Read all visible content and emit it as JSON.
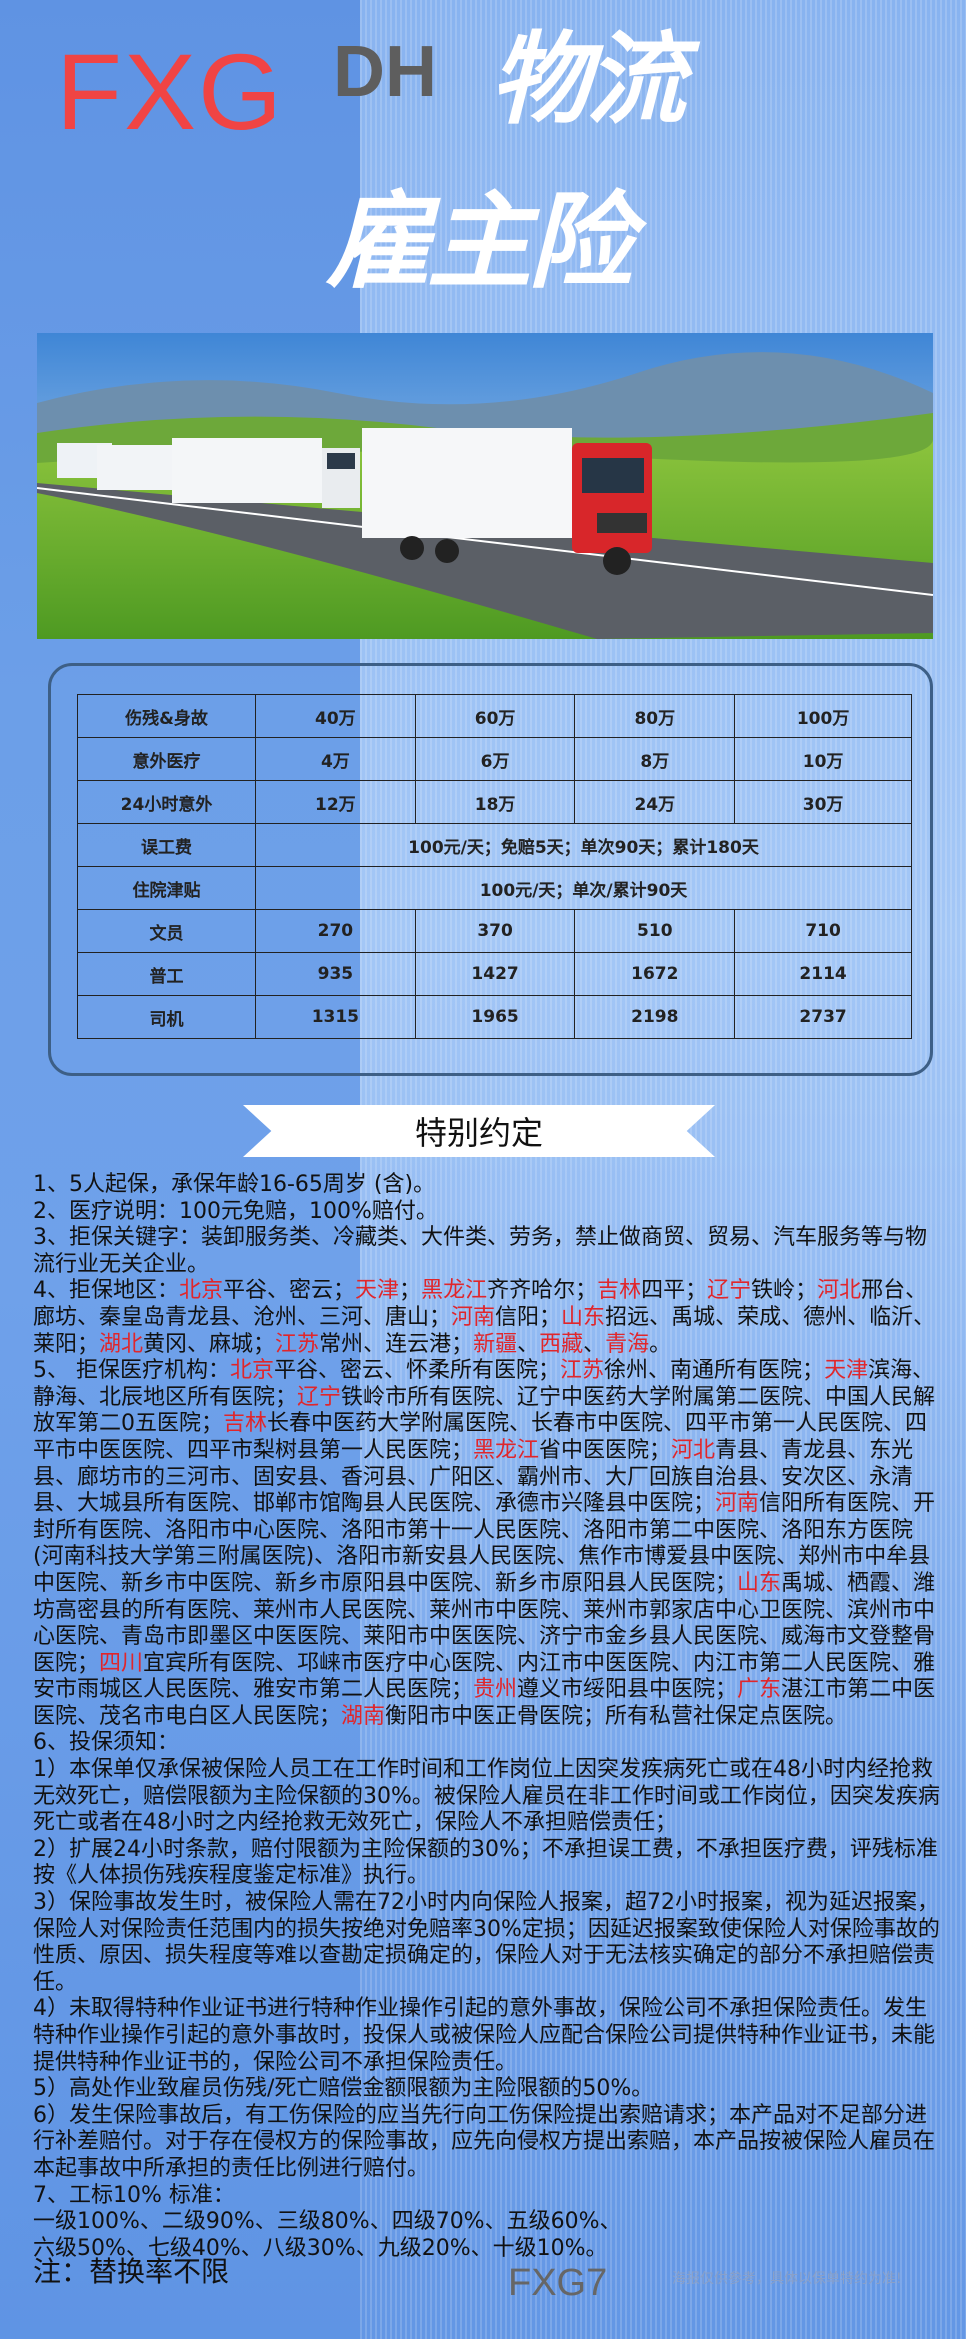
{
  "header": {
    "brand": "FXG",
    "brand_color": "#f04444",
    "sub_brand": "DH",
    "title_line1": "物流",
    "title_line2": "雇主险"
  },
  "table": {
    "rows": [
      {
        "label": "伤残&身故",
        "values": [
          "40万",
          "60万",
          "80万",
          "100万"
        ]
      },
      {
        "label": "意外医疗",
        "values": [
          "4万",
          "6万",
          "8万",
          "10万"
        ]
      },
      {
        "label": "24小时意外",
        "values": [
          "12万",
          "18万",
          "24万",
          "30万"
        ]
      },
      {
        "label": "误工费",
        "merged": "100元/天；免赔5天；单次90天；累计180天"
      },
      {
        "label": "住院津贴",
        "merged": "100元/天；单次/累计90天"
      },
      {
        "label": "文员",
        "values": [
          "270",
          "370",
          "510",
          "710"
        ]
      },
      {
        "label": "普工",
        "values": [
          "935",
          "1427",
          "1672",
          "2114"
        ]
      },
      {
        "label": "司机",
        "values": [
          "1315",
          "1965",
          "2198",
          "2737"
        ]
      }
    ]
  },
  "section_title": "特别约定",
  "highlight_color": "#e0262b",
  "paragraphs": [
    [
      {
        "t": "1、5人起保，承保年龄16-65周岁 (含)。"
      }
    ],
    [
      {
        "t": "2、医疗说明：100元免赔，100%赔付。"
      }
    ],
    [
      {
        "t": "3、拒保关键字：装卸服务类、冷藏类、大件类、劳务，禁止做商贸、贸易、汽车服务等与物流行业无关企业。"
      }
    ],
    [
      {
        "t": "4、拒保地区："
      },
      {
        "t": "北京",
        "r": 1
      },
      {
        "t": "平谷、密云；"
      },
      {
        "t": "天津",
        "r": 1
      },
      {
        "t": "；"
      },
      {
        "t": "黑龙江",
        "r": 1
      },
      {
        "t": "齐齐哈尔；"
      },
      {
        "t": "吉林",
        "r": 1
      },
      {
        "t": "四平；"
      },
      {
        "t": "辽宁",
        "r": 1
      },
      {
        "t": "铁岭；"
      },
      {
        "t": "河北",
        "r": 1
      },
      {
        "t": "邢台、廊坊、秦皇岛青龙县、沧州、三河、唐山；"
      },
      {
        "t": "河南",
        "r": 1
      },
      {
        "t": "信阳；"
      },
      {
        "t": "山东",
        "r": 1
      },
      {
        "t": "招远、禹城、荣成、德州、临沂、莱阳；"
      },
      {
        "t": "湖北",
        "r": 1
      },
      {
        "t": "黄冈、麻城；"
      },
      {
        "t": "江苏",
        "r": 1
      },
      {
        "t": "常州、连云港；"
      },
      {
        "t": "新疆",
        "r": 1
      },
      {
        "t": "、"
      },
      {
        "t": "西藏",
        "r": 1
      },
      {
        "t": "、"
      },
      {
        "t": "青海",
        "r": 1
      },
      {
        "t": "。"
      }
    ],
    [
      {
        "t": "5、 拒保医疗机构："
      },
      {
        "t": "北京",
        "r": 1
      },
      {
        "t": "平谷、密云、怀柔所有医院；"
      },
      {
        "t": "江苏",
        "r": 1
      },
      {
        "t": "徐州、南通所有医院；"
      },
      {
        "t": "天津",
        "r": 1
      },
      {
        "t": "滨海、静海、北辰地区所有医院；"
      },
      {
        "t": "辽宁",
        "r": 1
      },
      {
        "t": "铁岭市所有医院、辽宁中医药大学附属第二医院、中国人民解放军第二0五医院；"
      },
      {
        "t": "吉林",
        "r": 1
      },
      {
        "t": "长春中医药大学附属医院、长春市中医院、四平市第一人民医院、四平市中医医院、四平市梨树县第一人民医院；"
      },
      {
        "t": "黑龙江",
        "r": 1
      },
      {
        "t": "省中医医院；"
      },
      {
        "t": "河北",
        "r": 1
      },
      {
        "t": "青县、青龙县、东光县、廊坊市的三河市、固安县、香河县、广阳区、霸州市、大厂回族自治县、安次区、永清县、大城县所有医院、邯郸市馆陶县人民医院、承德市兴隆县中医院；"
      },
      {
        "t": "河南",
        "r": 1
      },
      {
        "t": "信阳所有医院、开封所有医院、洛阳市中心医院、洛阳市第十一人民医院、洛阳市第二中医院、洛阳东方医院(河南科技大学第三附属医院)、洛阳市新安县人民医院、焦作市博爱县中医院、郑州市中牟县中医院、新乡市中医院、新乡市原阳县中医院、新乡市原阳县人民医院；"
      },
      {
        "t": "山东",
        "r": 1
      },
      {
        "t": "禹城、栖霞、潍坊高密县的所有医院、莱州市人民医院、莱州市中医院、莱州市郭家店中心卫医院、滨州市中心医院、青岛市即墨区中医医院、莱阳市中医医院、济宁市金乡县人民医院、威海市文登整骨医院；"
      },
      {
        "t": "四川",
        "r": 1
      },
      {
        "t": "宜宾所有医院、邛崃市医疗中心医院、内江市中医医院、内江市第二人民医院、雅安市雨城区人民医院、雅安市第二人民医院；"
      },
      {
        "t": "贵州",
        "r": 1
      },
      {
        "t": "遵义市绥阳县中医院；"
      },
      {
        "t": "广东",
        "r": 1
      },
      {
        "t": "湛江市第二中医医院、茂名市电白区人民医院；"
      },
      {
        "t": "湖南",
        "r": 1
      },
      {
        "t": "衡阳市中医正骨医院；所有私营社保定点医院。"
      }
    ],
    [
      {
        "t": "6、投保须知："
      }
    ],
    [
      {
        "t": "1）本保单仅承保被保险人员工在工作时间和工作岗位上因突发疾病死亡或在48小时内经抢救无效死亡，赔偿限额为主险保额的30%。被保险人雇员在非工作时间或工作岗位，因突发疾病死亡或者在48小时之内经抢救无效死亡，保险人不承担赔偿责任；"
      }
    ],
    [
      {
        "t": "2）扩展24小时条款，赔付限额为主险保额的30%；不承担误工费，不承担医疗费，评残标准按《人体损伤残疾程度鉴定标准》执行。"
      }
    ],
    [
      {
        "t": "3）保险事故发生时，被保险人需在72小时内向保险人报案，超72小时报案，视为延迟报案，保险人对保险责任范围内的损失按绝对免赔率30%定损；因延迟报案致使保险人对保险事故的性质、原因、损失程度等难以查勘定损确定的，保险人对于无法核实确定的部分不承担赔偿责任。"
      }
    ],
    [
      {
        "t": "4）未取得特种作业证书进行特种作业操作引起的意外事故，保险公司不承担保险责任。发生特种作业操作引起的意外事故时，投保人或被保险人应配合保险公司提供特种作业证书，未能提供特种作业证书的，保险公司不承担保险责任。"
      }
    ],
    [
      {
        "t": "5）高处作业致雇员伤残/死亡赔偿金额限额为主险限额的50%。"
      }
    ],
    [
      {
        "t": "6）发生保险事故后，有工伤保险的应当先行向工伤保险提出索赔请求；本产品对不足部分进行补差赔付。对于存在侵权方的保险事故，应先向侵权方提出索赔，本产品按被保险人雇员在本起事故中所承担的责任比例进行赔付。"
      }
    ],
    [
      {
        "t": "7、工标10% 标准："
      }
    ],
    [
      {
        "t": "一级100%、二级90%、三级80%、四级70%、五级60%、"
      }
    ],
    [
      {
        "t": "六级50%、七级40%、八级30%、九级20%、十级10%。"
      }
    ]
  ],
  "note": "注：替换率不限",
  "footer_mark": "FXG7",
  "disclaimer": "海报仅供参考，具体以保单特约为准!"
}
